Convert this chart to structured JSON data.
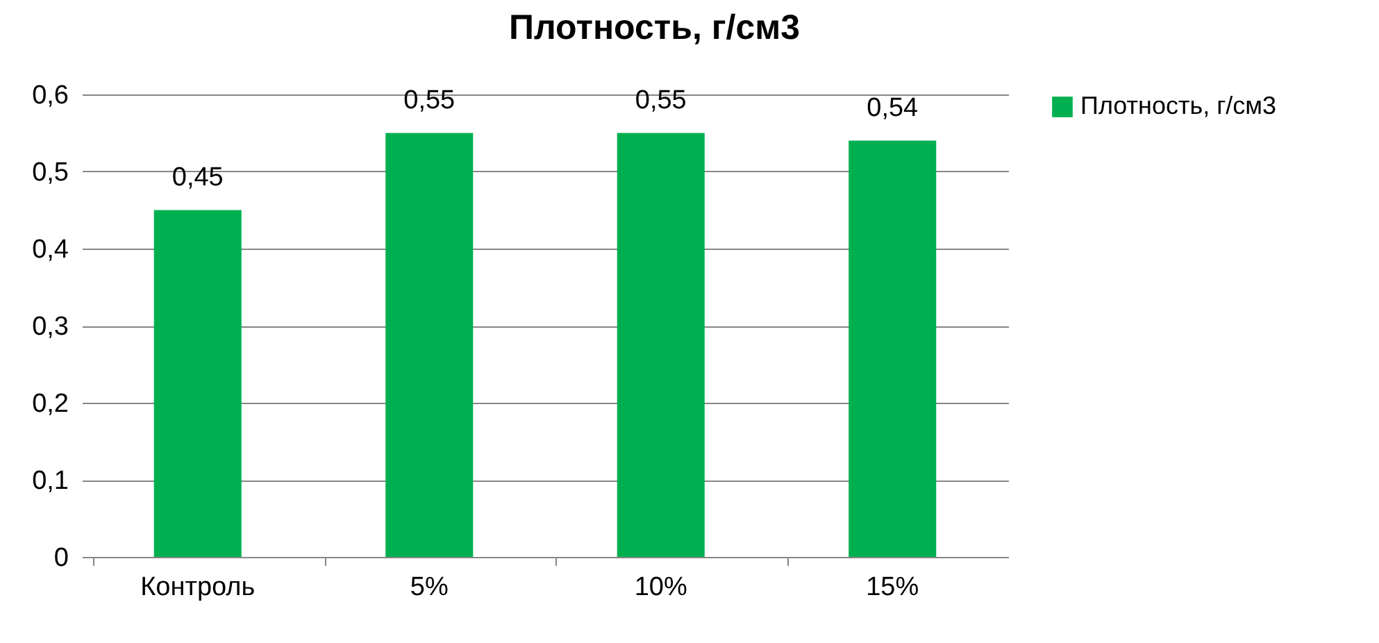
{
  "chart_data": {
    "type": "bar",
    "title": "Плотность, г/см3",
    "categories": [
      "Контроль",
      "5%",
      "10%",
      "15%"
    ],
    "series": [
      {
        "name": "Плотность, г/см3",
        "color": "#00b050",
        "values": [
          0.45,
          0.55,
          0.55,
          0.54
        ],
        "value_labels": [
          "0,45",
          "0,55",
          "0,55",
          "0,54"
        ]
      }
    ],
    "ylim": [
      0,
      0.6
    ],
    "yticks": [
      {
        "value": 0,
        "label": "0"
      },
      {
        "value": 0.1,
        "label": "0,1"
      },
      {
        "value": 0.2,
        "label": "0,2"
      },
      {
        "value": 0.3,
        "label": "0,3"
      },
      {
        "value": 0.4,
        "label": "0,4"
      },
      {
        "value": 0.5,
        "label": "0,5"
      },
      {
        "value": 0.6,
        "label": "0,6"
      }
    ],
    "grid": "y",
    "legend": "right"
  }
}
